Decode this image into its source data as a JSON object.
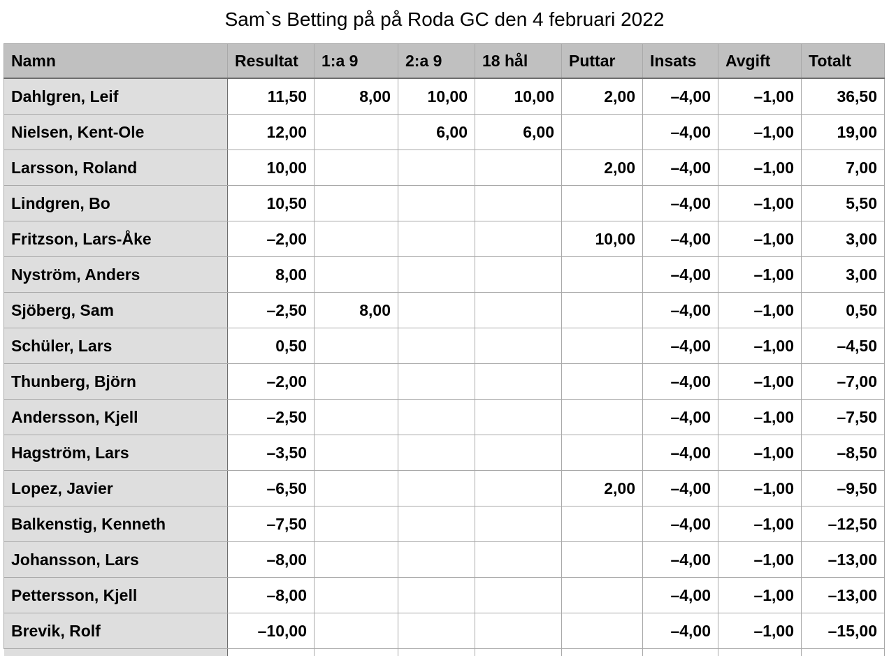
{
  "title": "Sam`s Betting på på Roda GC den 4 februari 2022",
  "table": {
    "columns": [
      "Namn",
      "Resultat",
      "1:a 9",
      "2:a 9",
      "18 hål",
      "Puttar",
      "Insats",
      "Avgift",
      "Totalt"
    ],
    "rows": [
      [
        "Dahlgren, Leif",
        "11,50",
        "8,00",
        "10,00",
        "10,00",
        "2,00",
        "–4,00",
        "–1,00",
        "36,50"
      ],
      [
        "Nielsen, Kent-Ole",
        "12,00",
        "",
        "6,00",
        "6,00",
        "",
        "–4,00",
        "–1,00",
        "19,00"
      ],
      [
        "Larsson, Roland",
        "10,00",
        "",
        "",
        "",
        "2,00",
        "–4,00",
        "–1,00",
        "7,00"
      ],
      [
        "Lindgren, Bo",
        "10,50",
        "",
        "",
        "",
        "",
        "–4,00",
        "–1,00",
        "5,50"
      ],
      [
        "Fritzson, Lars-Åke",
        "–2,00",
        "",
        "",
        "",
        "10,00",
        "–4,00",
        "–1,00",
        "3,00"
      ],
      [
        "Nyström, Anders",
        "8,00",
        "",
        "",
        "",
        "",
        "–4,00",
        "–1,00",
        "3,00"
      ],
      [
        "Sjöberg, Sam",
        "–2,50",
        "8,00",
        "",
        "",
        "",
        "–4,00",
        "–1,00",
        "0,50"
      ],
      [
        "Schüler, Lars",
        "0,50",
        "",
        "",
        "",
        "",
        "–4,00",
        "–1,00",
        "–4,50"
      ],
      [
        "Thunberg, Björn",
        "–2,00",
        "",
        "",
        "",
        "",
        "–4,00",
        "–1,00",
        "–7,00"
      ],
      [
        "Andersson, Kjell",
        "–2,50",
        "",
        "",
        "",
        "",
        "–4,00",
        "–1,00",
        "–7,50"
      ],
      [
        "Hagström, Lars",
        "–3,50",
        "",
        "",
        "",
        "",
        "–4,00",
        "–1,00",
        "–8,50"
      ],
      [
        "Lopez, Javier",
        "–6,50",
        "",
        "",
        "",
        "2,00",
        "–4,00",
        "–1,00",
        "–9,50"
      ],
      [
        "Balkenstig, Kenneth",
        "–7,50",
        "",
        "",
        "",
        "",
        "–4,00",
        "–1,00",
        "–12,50"
      ],
      [
        "Johansson, Lars",
        "–8,00",
        "",
        "",
        "",
        "",
        "–4,00",
        "–1,00",
        "–13,00"
      ],
      [
        "Pettersson, Kjell",
        "–8,00",
        "",
        "",
        "",
        "",
        "–4,00",
        "–1,00",
        "–13,00"
      ],
      [
        "Brevik, Rolf",
        "–10,00",
        "",
        "",
        "",
        "",
        "–4,00",
        "–1,00",
        "–15,00"
      ]
    ]
  },
  "colors": {
    "header_background": "#c0c0c0",
    "name_column_background": "#dedede",
    "grid_line": "#a9a9a9"
  }
}
